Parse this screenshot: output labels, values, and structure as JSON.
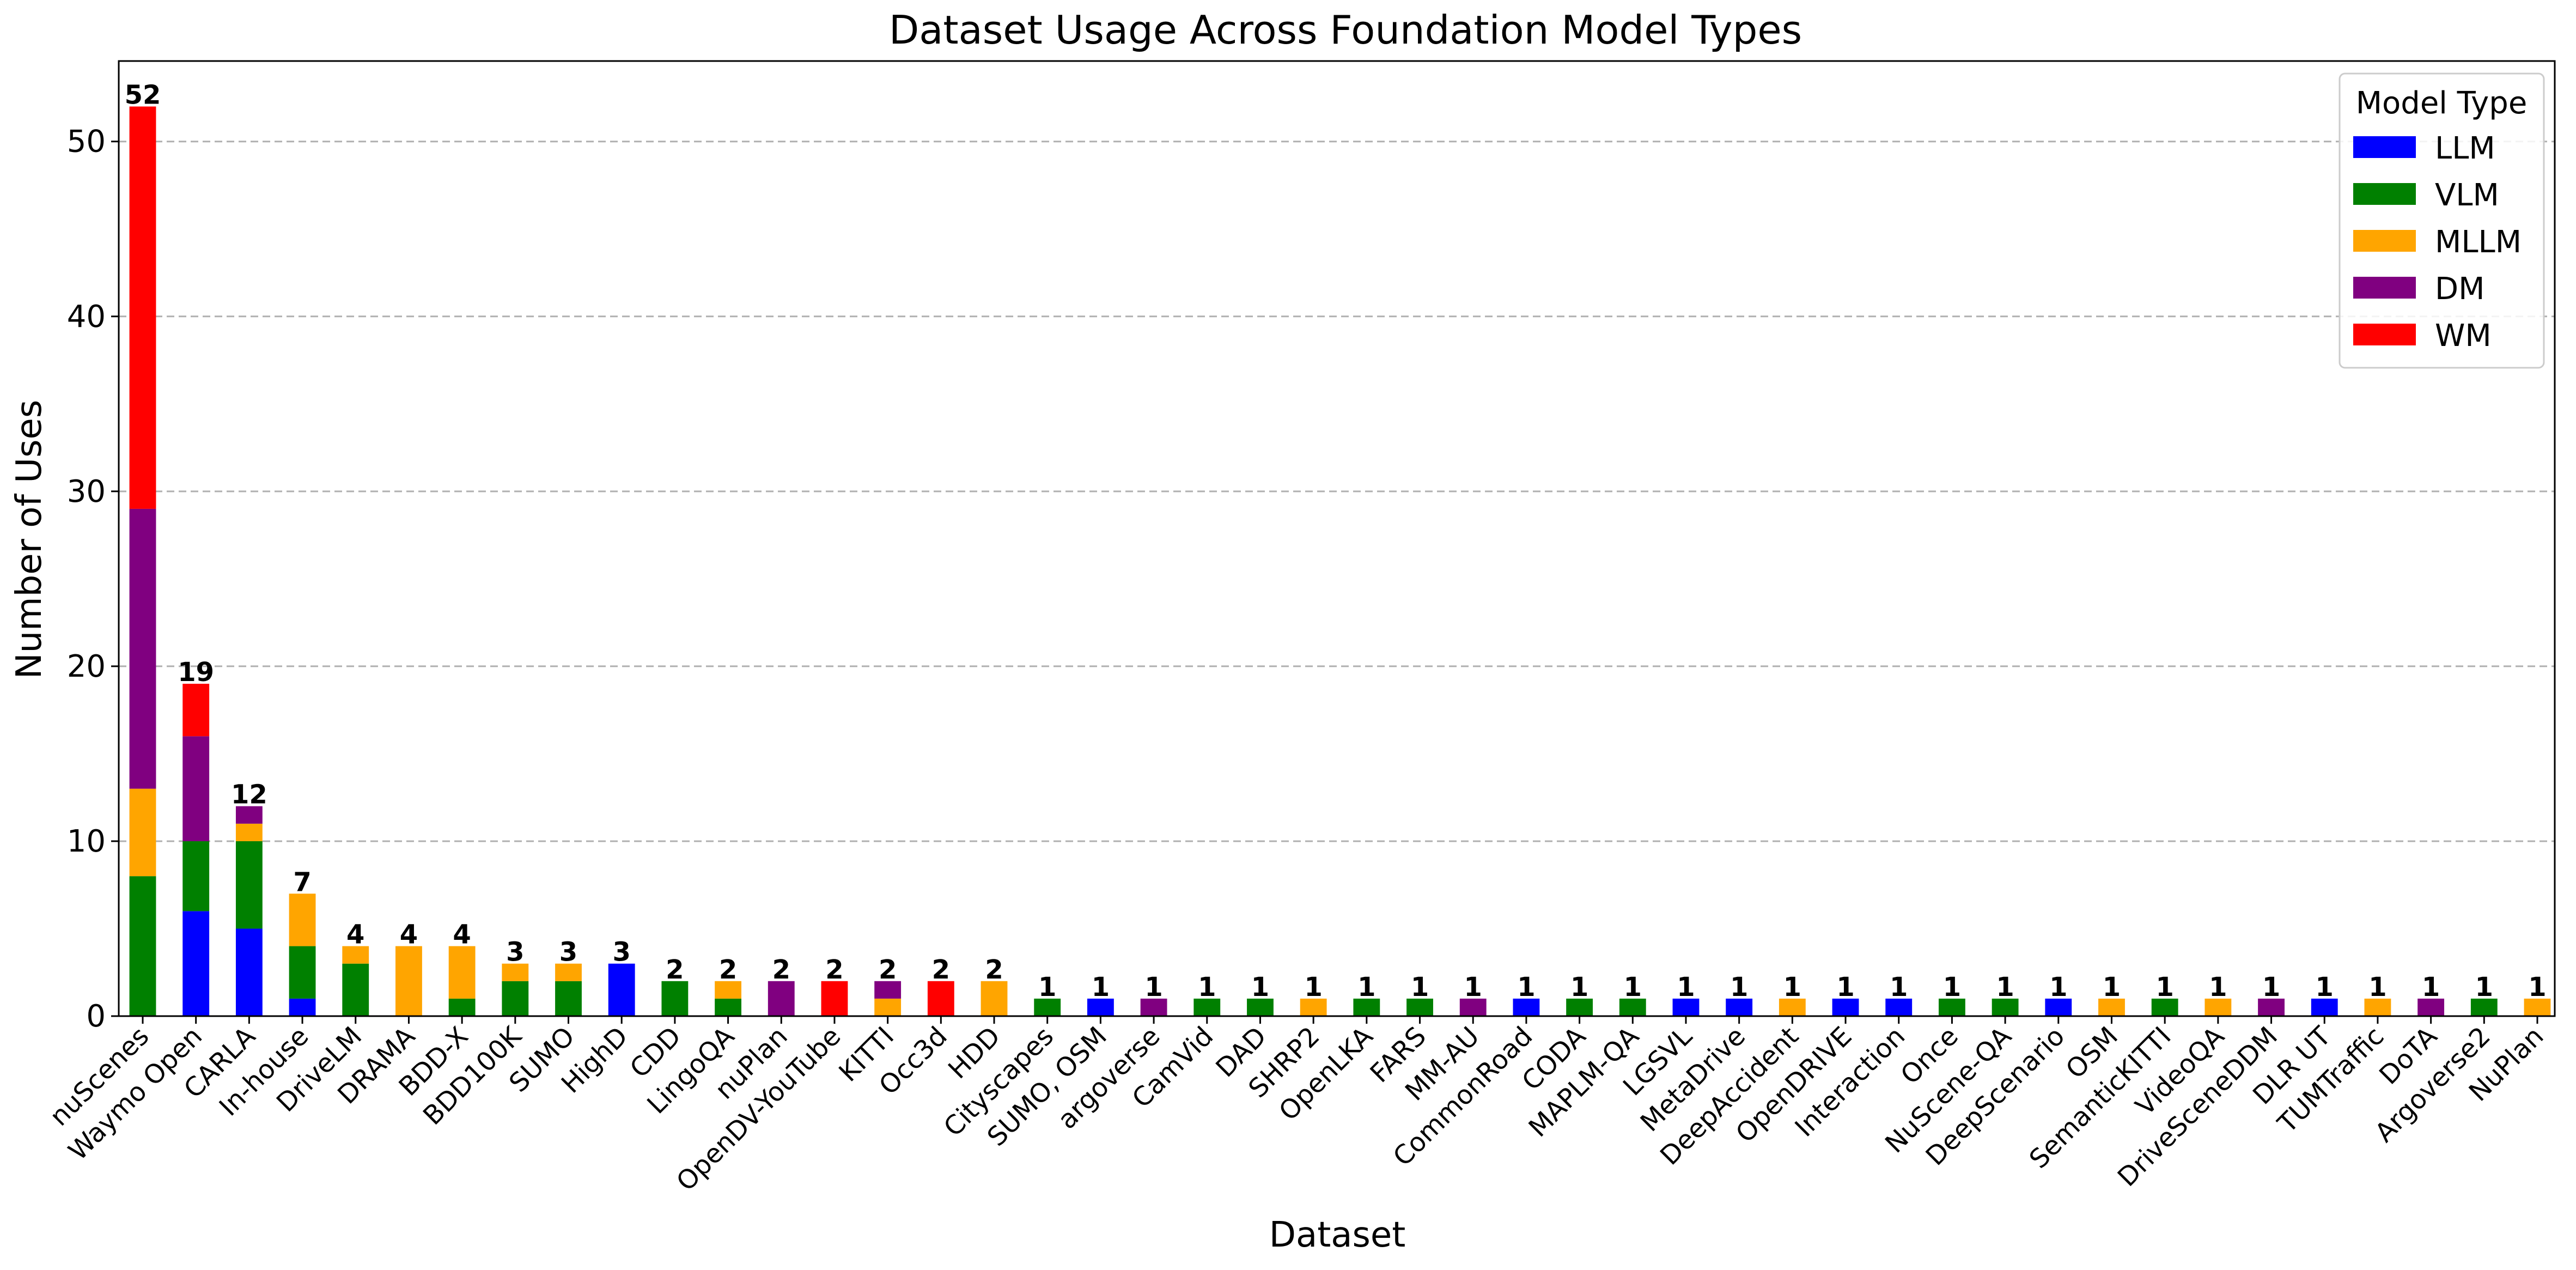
{
  "chart_data": {
    "type": "bar",
    "stacked": true,
    "title": "Dataset Usage Across Foundation Model Types",
    "xlabel": "Dataset",
    "ylabel": "Number of Uses",
    "ylim": [
      0,
      54.6
    ],
    "yticks": [
      0,
      10,
      20,
      30,
      40,
      50
    ],
    "grid": "y-dashed",
    "legend_title": "Model Type",
    "legend_position": "top-right",
    "categories": [
      "nuScenes",
      "Waymo Open",
      "CARLA",
      "In-house",
      "DriveLM",
      "DRAMA",
      "BDD-X",
      "BDD100K",
      "SUMO",
      "HighD",
      "CDD",
      "LingoQA",
      "nuPlan",
      "OpenDV-YouTube",
      "KITTI",
      "Occ3d",
      "HDD",
      "Cityscapes",
      "SUMO, OSM",
      "argoverse",
      "CamVid",
      "DAD",
      "SHRP2",
      "OpenLKA",
      "FARS",
      "MM-AU",
      "CommonRoad",
      "CODA",
      "MAPLM-QA",
      "LGSVL",
      "MetaDrive",
      "DeepAccident",
      "OpenDRIVE",
      "Interaction",
      "Once",
      "NuScene-QA",
      "DeepScenario",
      "OSM",
      "SemanticKITTI",
      "VideoQA",
      "DriveSceneDDM",
      "DLR UT",
      "TUMTraffic",
      "DoTA",
      "Argoverse2",
      "NuPlan"
    ],
    "series": [
      {
        "name": "LLM",
        "color": "#0000ff",
        "values": [
          0,
          6,
          5,
          1,
          0,
          0,
          0,
          0,
          0,
          3,
          0,
          0,
          0,
          0,
          0,
          0,
          0,
          0,
          1,
          0,
          0,
          0,
          0,
          0,
          0,
          0,
          1,
          0,
          0,
          1,
          1,
          0,
          1,
          1,
          0,
          0,
          1,
          0,
          0,
          0,
          0,
          1,
          0,
          0,
          0,
          0
        ]
      },
      {
        "name": "VLM",
        "color": "#008000",
        "values": [
          8,
          4,
          5,
          3,
          3,
          0,
          1,
          2,
          2,
          0,
          2,
          1,
          0,
          0,
          0,
          0,
          0,
          1,
          0,
          0,
          1,
          1,
          0,
          1,
          1,
          0,
          0,
          1,
          1,
          0,
          0,
          0,
          0,
          0,
          1,
          1,
          0,
          0,
          1,
          0,
          0,
          0,
          0,
          0,
          1,
          0
        ]
      },
      {
        "name": "MLLM",
        "color": "#ffa500",
        "values": [
          5,
          0,
          1,
          3,
          1,
          4,
          3,
          1,
          1,
          0,
          0,
          1,
          0,
          0,
          1,
          0,
          2,
          0,
          0,
          0,
          0,
          0,
          1,
          0,
          0,
          0,
          0,
          0,
          0,
          0,
          0,
          1,
          0,
          0,
          0,
          0,
          0,
          1,
          0,
          1,
          0,
          0,
          1,
          0,
          0,
          1
        ]
      },
      {
        "name": "DM",
        "color": "#800080",
        "values": [
          16,
          6,
          1,
          0,
          0,
          0,
          0,
          0,
          0,
          0,
          0,
          0,
          2,
          0,
          1,
          0,
          0,
          0,
          0,
          1,
          0,
          0,
          0,
          0,
          0,
          1,
          0,
          0,
          0,
          0,
          0,
          0,
          0,
          0,
          0,
          0,
          0,
          0,
          0,
          0,
          1,
          0,
          0,
          1,
          0,
          0
        ]
      },
      {
        "name": "WM",
        "color": "#ff0000",
        "values": [
          23,
          3,
          0,
          0,
          0,
          0,
          0,
          0,
          0,
          0,
          0,
          0,
          0,
          2,
          0,
          2,
          0,
          0,
          0,
          0,
          0,
          0,
          0,
          0,
          0,
          0,
          0,
          0,
          0,
          0,
          0,
          0,
          0,
          0,
          0,
          0,
          0,
          0,
          0,
          0,
          0,
          0,
          0,
          0,
          0,
          0
        ]
      }
    ],
    "totals": [
      52,
      19,
      12,
      7,
      4,
      4,
      4,
      3,
      3,
      3,
      2,
      2,
      2,
      2,
      2,
      2,
      2,
      1,
      1,
      1,
      1,
      1,
      1,
      1,
      1,
      1,
      1,
      1,
      1,
      1,
      1,
      1,
      1,
      1,
      1,
      1,
      1,
      1,
      1,
      1,
      1,
      1,
      1,
      1,
      1,
      1
    ]
  }
}
